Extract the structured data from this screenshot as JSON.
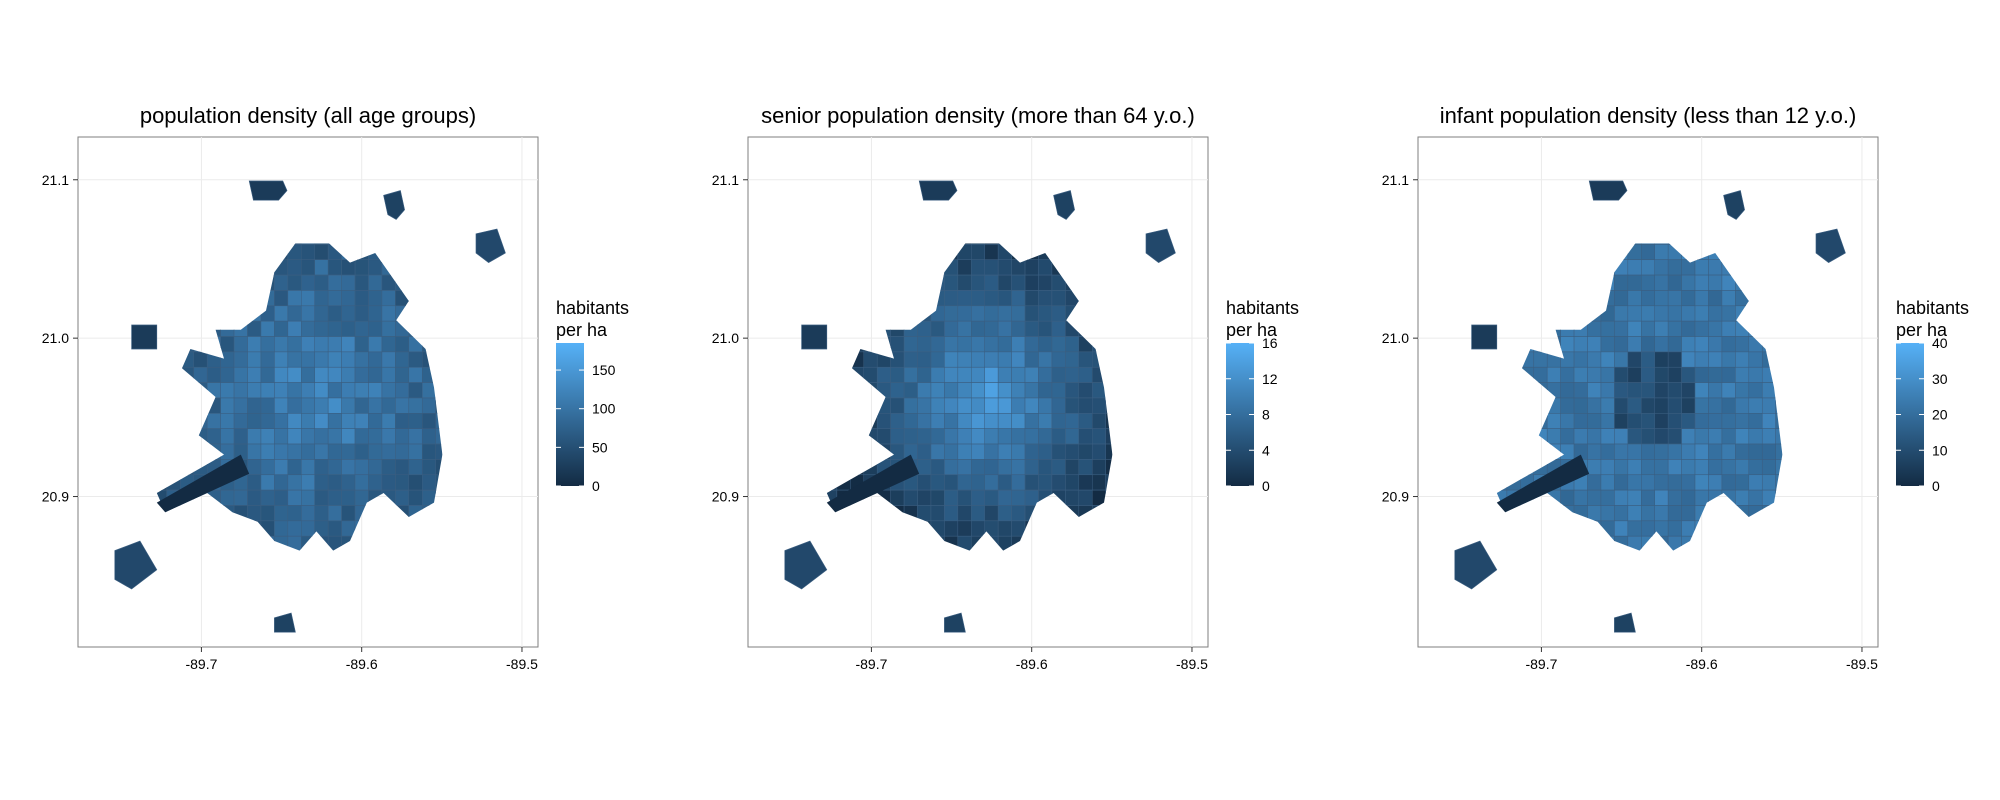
{
  "panels": [
    {
      "title": "population density (all age groups)",
      "legend": {
        "title_line1": "habitants",
        "title_line2": "per ha",
        "min": 0,
        "max": 185,
        "ticks": [
          0,
          50,
          100,
          150
        ]
      },
      "variant": "all"
    },
    {
      "title": "senior population density (more than 64 y.o.)",
      "legend": {
        "title_line1": "habitants",
        "title_line2": "per ha",
        "min": 0,
        "max": 16,
        "ticks": [
          0,
          4,
          8,
          12,
          16
        ]
      },
      "variant": "senior"
    },
    {
      "title": "infant population density (less than 12 y.o.)",
      "legend": {
        "title_line1": "habitants",
        "title_line2": "per ha",
        "min": 0,
        "max": 40,
        "ticks": [
          0,
          10,
          20,
          30,
          40
        ]
      },
      "variant": "infant"
    }
  ],
  "axes": {
    "x_ticks": [
      -89.7,
      -89.6,
      -89.5
    ],
    "x_tick_labels": [
      "-89.7",
      "-89.6",
      "-89.5"
    ],
    "y_ticks": [
      20.9,
      21.0,
      21.1
    ],
    "y_tick_labels": [
      "20.9",
      "21.0",
      "21.1"
    ],
    "xlim": [
      -89.777,
      -89.49
    ],
    "ylim": [
      20.805,
      21.127
    ]
  },
  "colors": {
    "low": "#132B43",
    "high": "#56B1F7",
    "panel_border": "#7f7f7f",
    "grid": "#ebebeb",
    "na": "#7f7f7f"
  }
}
